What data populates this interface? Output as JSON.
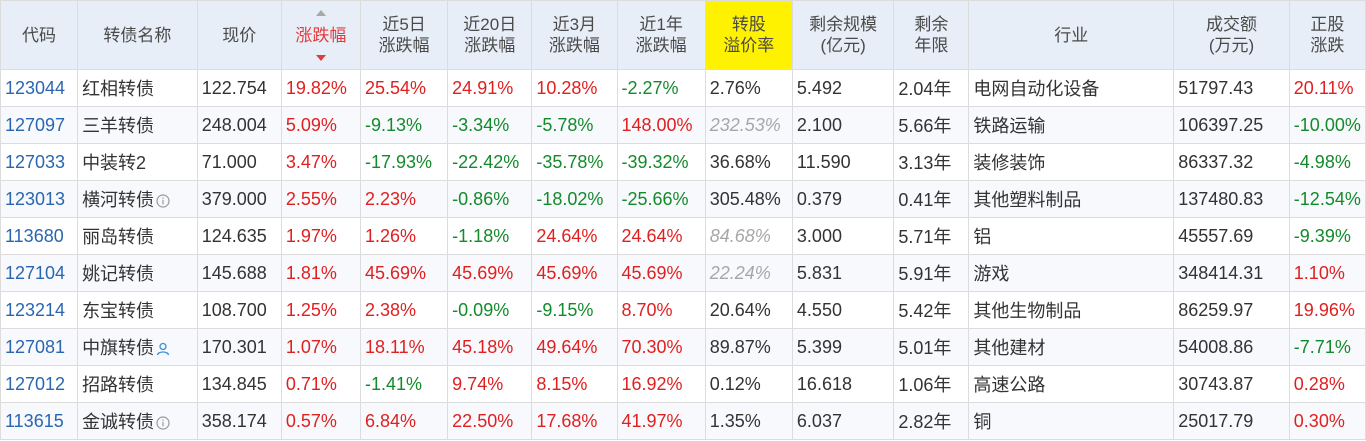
{
  "colors": {
    "header_bg": "#e7eef8",
    "highlight_bg": "#fff200",
    "up": "#e02020",
    "down": "#138a2b",
    "code": "#2a66b0",
    "muted": "#a7a7a7"
  },
  "headers": [
    {
      "key": "code",
      "line1": "代码",
      "line2": ""
    },
    {
      "key": "name",
      "line1": "转债名称",
      "line2": ""
    },
    {
      "key": "price",
      "line1": "现价",
      "line2": ""
    },
    {
      "key": "chg",
      "line1": "涨跌幅",
      "line2": "",
      "sorted": "desc"
    },
    {
      "key": "chg5d",
      "line1": "近5日",
      "line2": "涨跌幅"
    },
    {
      "key": "chg20d",
      "line1": "近20日",
      "line2": "涨跌幅"
    },
    {
      "key": "chg3m",
      "line1": "近3月",
      "line2": "涨跌幅"
    },
    {
      "key": "chg1y",
      "line1": "近1年",
      "line2": "涨跌幅"
    },
    {
      "key": "premium",
      "line1": "转股",
      "line2": "溢价率",
      "highlight": true
    },
    {
      "key": "size",
      "line1": "剩余规模",
      "line2": "(亿元)"
    },
    {
      "key": "years",
      "line1": "剩余",
      "line2": "年限"
    },
    {
      "key": "industry",
      "line1": "行业",
      "line2": ""
    },
    {
      "key": "turnover",
      "line1": "成交额",
      "line2": "(万元)"
    },
    {
      "key": "stock_chg",
      "line1": "正股",
      "line2": "涨跌"
    }
  ],
  "rows": [
    {
      "code": "123044",
      "name": "红相转债",
      "icon": "",
      "price": "122.754",
      "chg": "19.82%",
      "chg_c": "red",
      "chg5d": "25.54%",
      "chg5d_c": "red",
      "chg20d": "24.91%",
      "chg20d_c": "red",
      "chg3m": "10.28%",
      "chg3m_c": "red",
      "chg1y": "-2.27%",
      "chg1y_c": "green",
      "premium": "2.76%",
      "premium_c": "plain",
      "size": "5.492",
      "years": "2.04年",
      "industry": "电网自动化设备",
      "turnover": "51797.43",
      "stock_chg": "20.11%",
      "stock_chg_c": "red"
    },
    {
      "code": "127097",
      "name": "三羊转债",
      "icon": "",
      "price": "248.004",
      "chg": "5.09%",
      "chg_c": "red",
      "chg5d": "-9.13%",
      "chg5d_c": "green",
      "chg20d": "-3.34%",
      "chg20d_c": "green",
      "chg3m": "-5.78%",
      "chg3m_c": "green",
      "chg1y": "148.00%",
      "chg1y_c": "red",
      "premium": "232.53%",
      "premium_c": "grey-italic",
      "size": "2.100",
      "years": "5.66年",
      "industry": "铁路运输",
      "turnover": "106397.25",
      "stock_chg": "-10.00%",
      "stock_chg_c": "green"
    },
    {
      "code": "127033",
      "name": "中装转2",
      "icon": "",
      "price": "71.000",
      "chg": "3.47%",
      "chg_c": "red",
      "chg5d": "-17.93%",
      "chg5d_c": "green",
      "chg20d": "-22.42%",
      "chg20d_c": "green",
      "chg3m": "-35.78%",
      "chg3m_c": "green",
      "chg1y": "-39.32%",
      "chg1y_c": "green",
      "premium": "36.68%",
      "premium_c": "plain",
      "size": "11.590",
      "years": "3.13年",
      "industry": "装修装饰",
      "turnover": "86337.32",
      "stock_chg": "-4.98%",
      "stock_chg_c": "green"
    },
    {
      "code": "123013",
      "name": "横河转债",
      "icon": "info",
      "price": "379.000",
      "chg": "2.55%",
      "chg_c": "red",
      "chg5d": "2.23%",
      "chg5d_c": "red",
      "chg20d": "-0.86%",
      "chg20d_c": "green",
      "chg3m": "-18.02%",
      "chg3m_c": "green",
      "chg1y": "-25.66%",
      "chg1y_c": "green",
      "premium": "305.48%",
      "premium_c": "plain",
      "size": "0.379",
      "years": "0.41年",
      "industry": "其他塑料制品",
      "turnover": "137480.83",
      "stock_chg": "-12.54%",
      "stock_chg_c": "green"
    },
    {
      "code": "113680",
      "name": "丽岛转债",
      "icon": "",
      "price": "124.635",
      "chg": "1.97%",
      "chg_c": "red",
      "chg5d": "1.26%",
      "chg5d_c": "red",
      "chg20d": "-1.18%",
      "chg20d_c": "green",
      "chg3m": "24.64%",
      "chg3m_c": "red",
      "chg1y": "24.64%",
      "chg1y_c": "red",
      "premium": "84.68%",
      "premium_c": "grey-italic",
      "size": "3.000",
      "years": "5.71年",
      "industry": "铝",
      "turnover": "45557.69",
      "stock_chg": "-9.39%",
      "stock_chg_c": "green"
    },
    {
      "code": "127104",
      "name": "姚记转债",
      "icon": "",
      "price": "145.688",
      "chg": "1.81%",
      "chg_c": "red",
      "chg5d": "45.69%",
      "chg5d_c": "red",
      "chg20d": "45.69%",
      "chg20d_c": "red",
      "chg3m": "45.69%",
      "chg3m_c": "red",
      "chg1y": "45.69%",
      "chg1y_c": "red",
      "premium": "22.24%",
      "premium_c": "grey-italic",
      "size": "5.831",
      "years": "5.91年",
      "industry": "游戏",
      "turnover": "348414.31",
      "stock_chg": "1.10%",
      "stock_chg_c": "red"
    },
    {
      "code": "123214",
      "name": "东宝转债",
      "icon": "",
      "price": "108.700",
      "chg": "1.25%",
      "chg_c": "red",
      "chg5d": "2.38%",
      "chg5d_c": "red",
      "chg20d": "-0.09%",
      "chg20d_c": "green",
      "chg3m": "-9.15%",
      "chg3m_c": "green",
      "chg1y": "8.70%",
      "chg1y_c": "red",
      "premium": "20.64%",
      "premium_c": "plain",
      "size": "4.550",
      "years": "5.42年",
      "industry": "其他生物制品",
      "turnover": "86259.97",
      "stock_chg": "19.96%",
      "stock_chg_c": "red"
    },
    {
      "code": "127081",
      "name": "中旗转债",
      "icon": "person",
      "price": "170.301",
      "chg": "1.07%",
      "chg_c": "red",
      "chg5d": "18.11%",
      "chg5d_c": "red",
      "chg20d": "45.18%",
      "chg20d_c": "red",
      "chg3m": "49.64%",
      "chg3m_c": "red",
      "chg1y": "70.30%",
      "chg1y_c": "red",
      "premium": "89.87%",
      "premium_c": "plain",
      "size": "5.399",
      "years": "5.01年",
      "industry": "其他建材",
      "turnover": "54008.86",
      "stock_chg": "-7.71%",
      "stock_chg_c": "green"
    },
    {
      "code": "127012",
      "name": "招路转债",
      "icon": "",
      "price": "134.845",
      "chg": "0.71%",
      "chg_c": "red",
      "chg5d": "-1.41%",
      "chg5d_c": "green",
      "chg20d": "9.74%",
      "chg20d_c": "red",
      "chg3m": "8.15%",
      "chg3m_c": "red",
      "chg1y": "16.92%",
      "chg1y_c": "red",
      "premium": "0.12%",
      "premium_c": "plain",
      "size": "16.618",
      "years": "1.06年",
      "industry": "高速公路",
      "turnover": "30743.87",
      "stock_chg": "0.28%",
      "stock_chg_c": "red"
    },
    {
      "code": "113615",
      "name": "金诚转债",
      "icon": "info",
      "price": "358.174",
      "chg": "0.57%",
      "chg_c": "red",
      "chg5d": "6.84%",
      "chg5d_c": "red",
      "chg20d": "22.50%",
      "chg20d_c": "red",
      "chg3m": "17.68%",
      "chg3m_c": "red",
      "chg1y": "41.97%",
      "chg1y_c": "red",
      "premium": "1.35%",
      "premium_c": "plain",
      "size": "6.037",
      "years": "2.82年",
      "industry": "铜",
      "turnover": "25017.79",
      "stock_chg": "0.30%",
      "stock_chg_c": "red"
    }
  ]
}
